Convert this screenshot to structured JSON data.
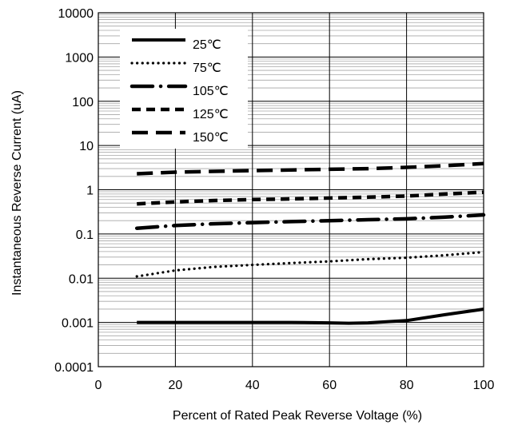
{
  "chart_data": {
    "type": "line",
    "xlabel": "Percent of Rated Peak Reverse Voltage (%)",
    "ylabel": "Instantaneous Reverse Current (uA)",
    "xlim": [
      0,
      100
    ],
    "ylim": [
      0.0001,
      10000
    ],
    "yscale": "log",
    "x_ticks": [
      "0",
      "20",
      "40",
      "60",
      "80",
      "100"
    ],
    "y_ticks": [
      "0.0001",
      "0.001",
      "0.01",
      "0.1",
      "1",
      "10",
      "100",
      "1000",
      "10000"
    ],
    "grid": "major and minor",
    "legend_position": "top-left",
    "series": [
      {
        "name": "25℃",
        "style": "solid",
        "x": [
          10,
          20,
          30,
          40,
          50,
          60,
          65,
          70,
          80,
          90,
          100
        ],
        "y": [
          0.001,
          0.001,
          0.001,
          0.001,
          0.001,
          0.00098,
          0.00096,
          0.00098,
          0.0011,
          0.0015,
          0.002
        ]
      },
      {
        "name": "75℃",
        "style": "dotted",
        "x": [
          10,
          20,
          30,
          40,
          50,
          60,
          70,
          80,
          90,
          100
        ],
        "y": [
          0.011,
          0.015,
          0.018,
          0.02,
          0.022,
          0.024,
          0.027,
          0.029,
          0.033,
          0.039
        ]
      },
      {
        "name": "105℃",
        "style": "dash-dot",
        "x": [
          10,
          20,
          30,
          40,
          50,
          60,
          70,
          80,
          90,
          100
        ],
        "y": [
          0.135,
          0.155,
          0.17,
          0.18,
          0.19,
          0.2,
          0.21,
          0.22,
          0.24,
          0.27
        ]
      },
      {
        "name": "125℃",
        "style": "dashed",
        "x": [
          10,
          20,
          30,
          40,
          50,
          60,
          70,
          80,
          90,
          100
        ],
        "y": [
          0.48,
          0.53,
          0.57,
          0.6,
          0.62,
          0.65,
          0.68,
          0.72,
          0.8,
          0.88
        ]
      },
      {
        "name": "150℃",
        "style": "long-dash",
        "x": [
          10,
          20,
          30,
          40,
          50,
          60,
          70,
          80,
          90,
          100
        ],
        "y": [
          2.3,
          2.5,
          2.6,
          2.7,
          2.8,
          2.9,
          3.0,
          3.2,
          3.5,
          3.9
        ]
      }
    ]
  }
}
